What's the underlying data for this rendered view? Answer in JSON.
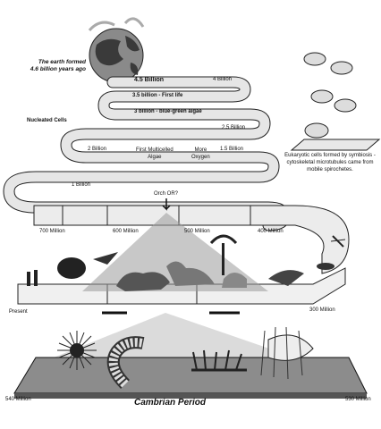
{
  "labels": {
    "earth_formed_1": "The earth formed",
    "earth_formed_2": "4.6 billion years ago",
    "band_45": "4.5 Billion",
    "band_4": "4 Billion",
    "band_35": "3.5 billion - First life",
    "band_3": "3 billion - blue-green algae",
    "nucleated": "Nucleated Cells",
    "band_25": "2.5 Billion",
    "band_2": "2 Billion",
    "algae_1": "First Multicelled",
    "algae_2": "Algae",
    "oxygen_1": "More",
    "oxygen_2": "Oxygen",
    "band_15": "1.5 Billion",
    "eukaryote": "Eukaryotic cells formed by symbiosis - cytoskeletal microtubules came from mobile spirochetes.",
    "band_1": "1 Billion",
    "orch": "Orch OR?",
    "m700": "700 Million",
    "m600": "600 Million",
    "m500": "500 Million",
    "m400": "400 Million",
    "present": "Present",
    "m300": "300 Million",
    "m540": "540 Million",
    "m530": "530 Million",
    "cambrian": "Cambrian Period"
  }
}
